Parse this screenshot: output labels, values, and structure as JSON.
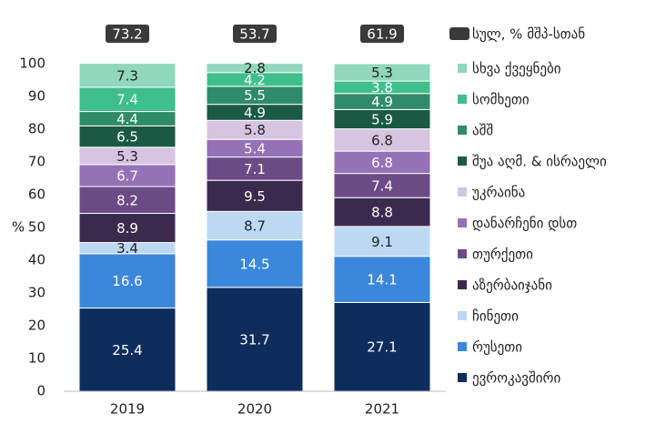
{
  "chart_data": {
    "type": "stacked-bar",
    "categories": [
      "2019",
      "2020",
      "2021"
    ],
    "ylabel": "%",
    "ylim": [
      0,
      100
    ],
    "yticks": [
      0,
      10,
      20,
      30,
      40,
      50,
      60,
      70,
      80,
      90,
      100
    ],
    "series": [
      {
        "name": "ევროკავშირი",
        "color": "#0e2d5c",
        "values": [
          25.4,
          31.7,
          27.1
        ]
      },
      {
        "name": "რუსეთი",
        "color": "#3b87dc",
        "values": [
          16.6,
          14.5,
          14.1
        ]
      },
      {
        "name": "ჩინეთი",
        "color": "#bdd8f3",
        "values": [
          3.4,
          8.7,
          9.1
        ]
      },
      {
        "name": "აზერბაიჯანი",
        "color": "#3c2a4e",
        "values": [
          8.9,
          9.5,
          8.8
        ]
      },
      {
        "name": "თურქეთი",
        "color": "#6b4b86",
        "values": [
          8.2,
          7.1,
          7.4
        ]
      },
      {
        "name": "დანარჩენი დსთ",
        "color": "#9571b6",
        "values": [
          6.7,
          5.4,
          6.8
        ]
      },
      {
        "name": "უკრაინა",
        "color": "#d7c4e1",
        "values": [
          5.3,
          5.8,
          6.8
        ]
      },
      {
        "name": "შუა აღმ. & ისრაელი",
        "color": "#1b5944",
        "values": [
          6.5,
          4.9,
          5.9
        ]
      },
      {
        "name": "აშშ",
        "color": "#2f8b69",
        "values": [
          4.4,
          5.5,
          4.9
        ]
      },
      {
        "name": "სომხეთი",
        "color": "#3ebf8c",
        "values": [
          7.4,
          4.2,
          3.8
        ]
      },
      {
        "name": "სხვა ქვეყნები",
        "color": "#90d7bb",
        "values": [
          7.3,
          2.8,
          5.3
        ]
      }
    ],
    "totals": {
      "name": "სულ, % მშპ-სთან",
      "color": "#3a3a3a",
      "values": [
        73.2,
        53.7,
        61.9
      ]
    }
  }
}
